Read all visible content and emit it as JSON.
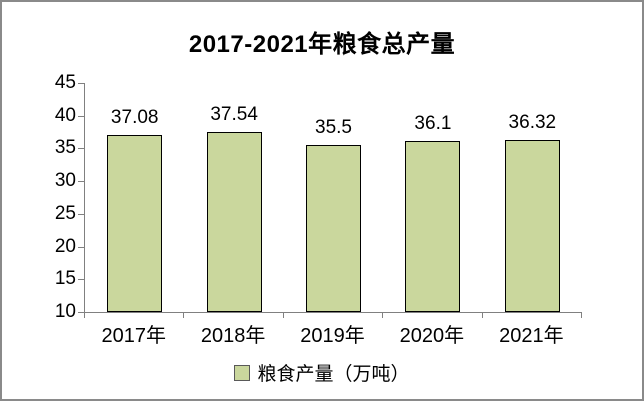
{
  "chart_data": {
    "type": "bar",
    "title": "2017-2021年粮食总产量",
    "categories": [
      "2017年",
      "2018年",
      "2019年",
      "2020年",
      "2021年"
    ],
    "values": [
      37.08,
      37.54,
      35.5,
      36.1,
      36.32
    ],
    "data_labels": [
      "37.08",
      "37.54",
      "35.5",
      "36.1",
      "36.32"
    ],
    "legend": "粮食产量（万吨）",
    "legend_position": "bottom",
    "xlabel": "",
    "ylabel": "",
    "ylim": [
      10,
      45
    ],
    "ytick_step": 5,
    "grid": false,
    "bar_color": "#CAD79D",
    "bar_border_color": "#000000",
    "axis_color": "#808080",
    "frame_border_color": "#8A8A8A",
    "text_color": "#000000"
  }
}
